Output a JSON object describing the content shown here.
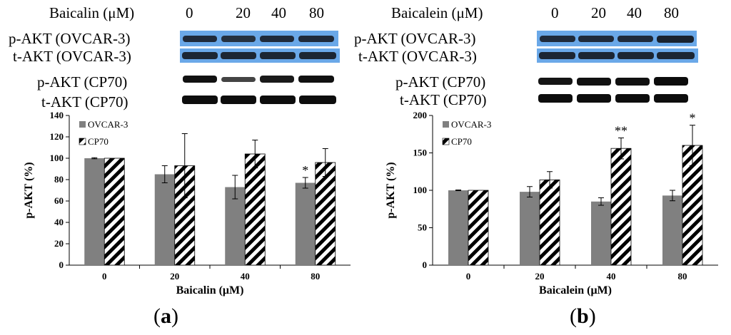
{
  "panels": [
    {
      "letter_open": "(",
      "letter": "a",
      "letter_close": ")",
      "header_label": "Baicalin (μM)",
      "header_doses": [
        "0",
        "20",
        "40",
        "80"
      ],
      "blots": [
        {
          "label": "p-AKT (OVCAR-3)",
          "background": "#6aa8e8"
        },
        {
          "label": "t-AKT (OVCAR-3)",
          "background": "#6aa8e8"
        },
        {
          "label": "p-AKT (CP70)",
          "background": "#ffffff"
        },
        {
          "label": "t-AKT (CP70)",
          "background": "#ffffff"
        }
      ]
    },
    {
      "letter_open": "(",
      "letter": "b",
      "letter_close": ")",
      "header_label": "Baicalein (μM)",
      "header_doses": [
        "0",
        "20",
        "40",
        "80"
      ],
      "blots": [
        {
          "label": "p-AKT (OVCAR-3)",
          "background": "#6aa8e8"
        },
        {
          "label": "t-AKT (OVCAR-3)",
          "background": "#6aa8e8"
        },
        {
          "label": "p-AKT (CP70)",
          "background": "#ffffff"
        },
        {
          "label": "t-AKT (CP70)",
          "background": "#ffffff"
        }
      ]
    }
  ],
  "chart_data": [
    {
      "type": "bar",
      "xlabel": "Baicalin (μM)",
      "ylabel": "p-AKT (%)",
      "categories": [
        "0",
        "20",
        "40",
        "80"
      ],
      "ylim": [
        0,
        140
      ],
      "yticks": [
        0,
        20,
        40,
        60,
        80,
        100,
        120,
        140
      ],
      "legend_position": "top-left",
      "series": [
        {
          "name": "OVCAR-3",
          "fill": "solid",
          "color": "#808080",
          "values": [
            100,
            85,
            73,
            77
          ],
          "errors": [
            0.5,
            8,
            11,
            5
          ],
          "annotations": [
            "",
            "",
            "",
            "*"
          ]
        },
        {
          "name": "CP70",
          "fill": "diagonal-hatch",
          "color": "#000000",
          "values": [
            100,
            93,
            104,
            96
          ],
          "errors": [
            0,
            30,
            13,
            13
          ],
          "annotations": [
            "",
            "",
            "",
            ""
          ]
        }
      ]
    },
    {
      "type": "bar",
      "xlabel": "Baicalein (μM)",
      "ylabel": "p-AKT (%)",
      "categories": [
        "0",
        "20",
        "40",
        "80"
      ],
      "ylim": [
        0,
        200
      ],
      "yticks": [
        0,
        50,
        100,
        150,
        200
      ],
      "legend_position": "top-left",
      "series": [
        {
          "name": "OVCAR-3",
          "fill": "solid",
          "color": "#808080",
          "values": [
            100,
            98,
            85,
            93
          ],
          "errors": [
            0.5,
            7,
            5,
            7
          ],
          "annotations": [
            "",
            "",
            "",
            ""
          ]
        },
        {
          "name": "CP70",
          "fill": "diagonal-hatch",
          "color": "#000000",
          "values": [
            100,
            114,
            156,
            160
          ],
          "errors": [
            0,
            11,
            14,
            27
          ],
          "annotations": [
            "",
            "",
            "**",
            "*"
          ]
        }
      ]
    }
  ]
}
